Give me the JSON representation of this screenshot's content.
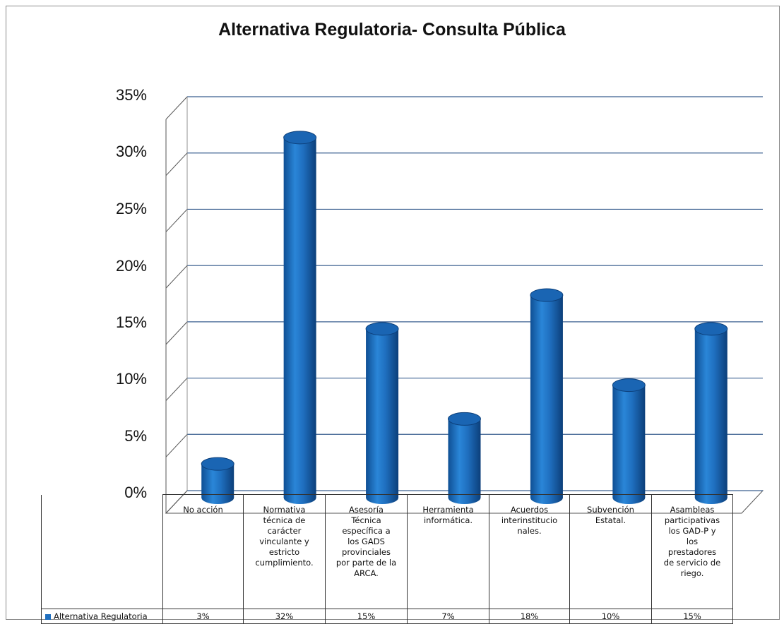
{
  "chart_data": {
    "type": "bar",
    "title": "Alternativa Regulatoria- Consulta Pública",
    "categories": [
      "No acción",
      "Normativa técnica de carácter vinculante y estricto cumplimiento.",
      "Asesoría Técnica específica a los GADS provinciales por parte de la ARCA.",
      "Herramienta informática.",
      "Acuerdos interinstitucionales.",
      "Subvención Estatal.",
      "Asambleas participativas los GAD-P y los prestadores de servicio de riego."
    ],
    "series": [
      {
        "name": "Alternativa Regulatoria",
        "values": [
          3,
          32,
          15,
          7,
          18,
          10,
          15
        ],
        "labels": [
          "3%",
          "32%",
          "15%",
          "7%",
          "18%",
          "10%",
          "15%"
        ]
      }
    ],
    "ylim": [
      0,
      35
    ],
    "yticks": [
      "0%",
      "5%",
      "10%",
      "15%",
      "20%",
      "25%",
      "30%",
      "35%"
    ],
    "grid": true,
    "legend": "table-left",
    "color": "#1f6fbf"
  }
}
